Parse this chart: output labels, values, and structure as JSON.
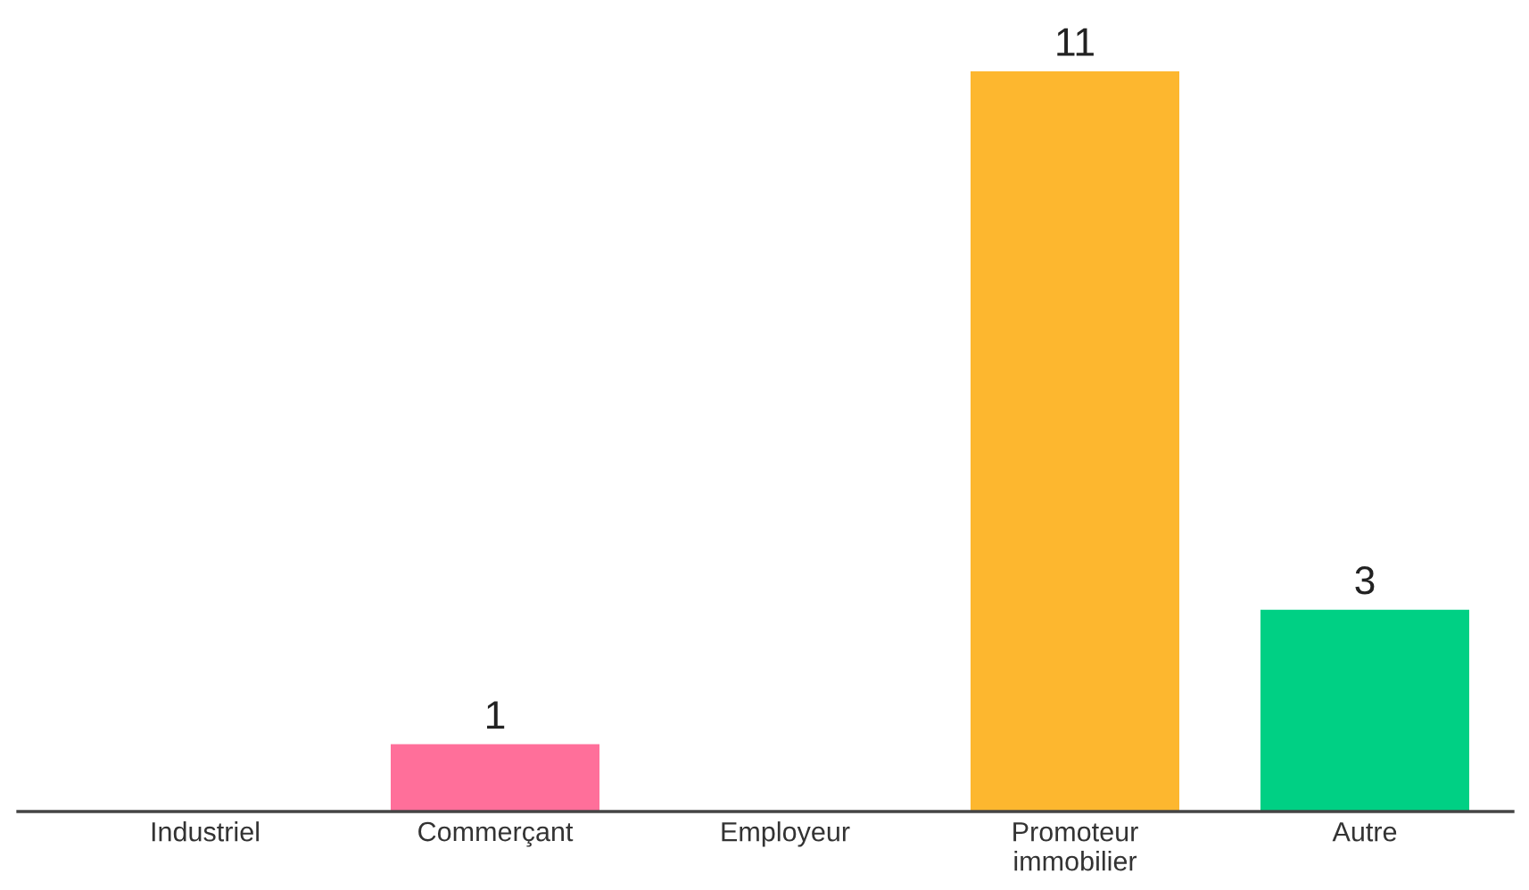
{
  "chart_data": {
    "type": "bar",
    "categories": [
      "Industriel",
      "Commerçant",
      "Employeur",
      "Promoteur\nimmobilier",
      "Autre"
    ],
    "values": [
      0,
      1,
      0,
      11,
      3
    ],
    "value_labels": [
      null,
      "1",
      null,
      "11",
      "3"
    ],
    "colors": [
      null,
      "#ff6f9a",
      null,
      "#fdb72f",
      "#00d084"
    ],
    "grid": false,
    "legend": false
  }
}
